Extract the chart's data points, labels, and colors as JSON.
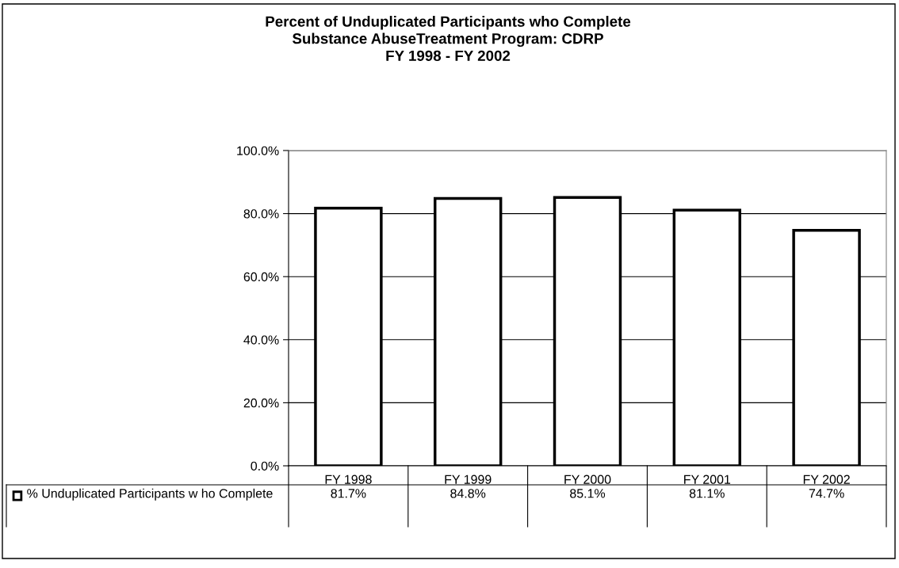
{
  "chart_data": {
    "type": "bar",
    "title": "Percent of Unduplicated Participants who Complete\nSubstance AbuseTreatment Program: CDRP\nFY 1998 - FY 2002",
    "categories": [
      "FY 1998",
      "FY 1999",
      "FY 2000",
      "FY 2001",
      "FY 2002"
    ],
    "series": [
      {
        "name": "% Unduplicated Participants w ho Complete",
        "color": "#ffffff",
        "values": [
          81.7,
          84.8,
          85.1,
          81.1,
          74.7
        ],
        "value_labels": [
          "81.7%",
          "84.8%",
          "85.1%",
          "81.1%",
          "74.7%"
        ]
      }
    ],
    "ylim": [
      0,
      100
    ],
    "yticks": [
      {
        "value": 0,
        "label": "0.0%"
      },
      {
        "value": 20,
        "label": "20.0%"
      },
      {
        "value": 40,
        "label": "40.0%"
      },
      {
        "value": 60,
        "label": "60.0%"
      },
      {
        "value": 80,
        "label": "80.0%"
      },
      {
        "value": 100,
        "label": "100.0%"
      }
    ],
    "grid": "y",
    "legend": "bottom"
  }
}
